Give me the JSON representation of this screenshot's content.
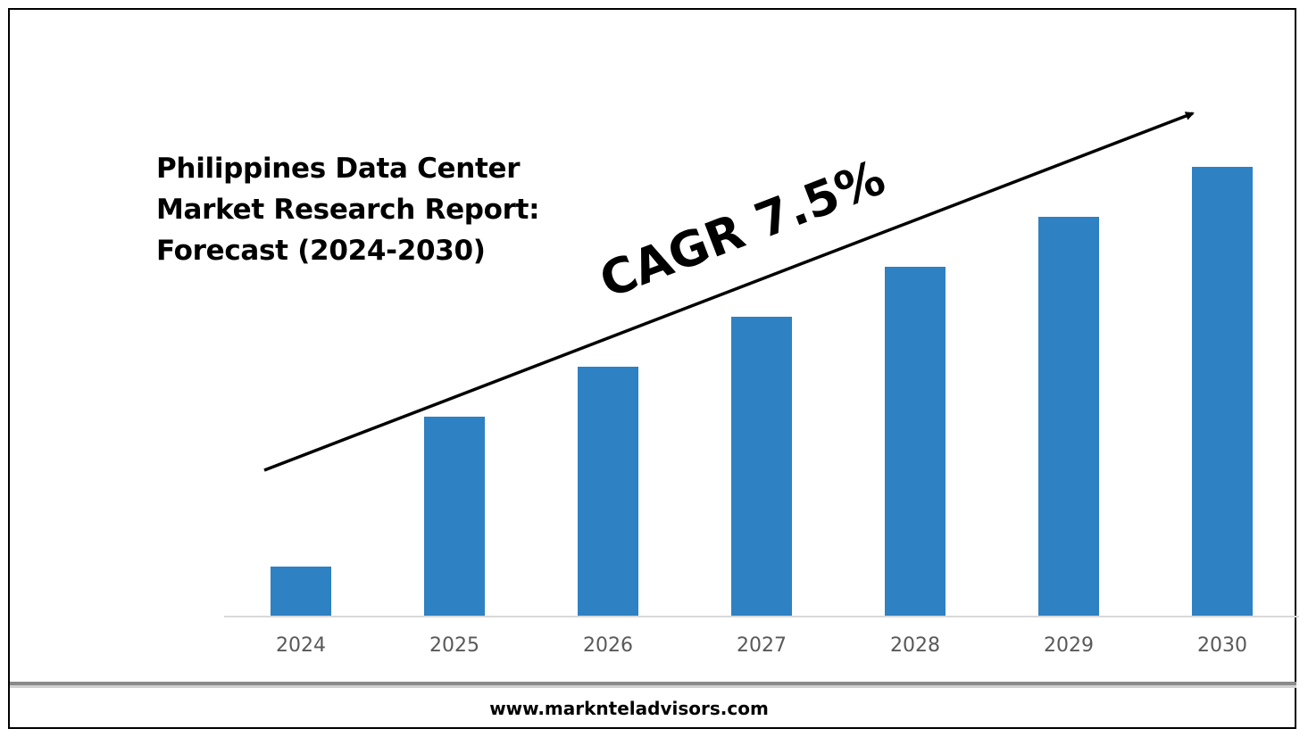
{
  "chart_data": {
    "type": "bar",
    "title": "Philippines Data Center Market Research Report: Forecast (2024-2030)",
    "title_lines": [
      "Philippines Data Center",
      "Market Research Report:",
      "Forecast (2024-2030)"
    ],
    "categories": [
      "2024",
      "2025",
      "2026",
      "2027",
      "2028",
      "2029",
      "2030"
    ],
    "values": [
      1,
      4,
      5,
      6,
      7,
      8,
      9
    ],
    "ylim": [
      0,
      10
    ],
    "xlabel": "",
    "ylabel": "",
    "grid": false,
    "legend": "none",
    "annotation": "CAGR 7.5%",
    "bar_color": "#2e81c2",
    "axis_color": "#d9d9d9",
    "tick_label_color": "#595959"
  },
  "footer": {
    "website": "www.marknteladvisors.com"
  }
}
